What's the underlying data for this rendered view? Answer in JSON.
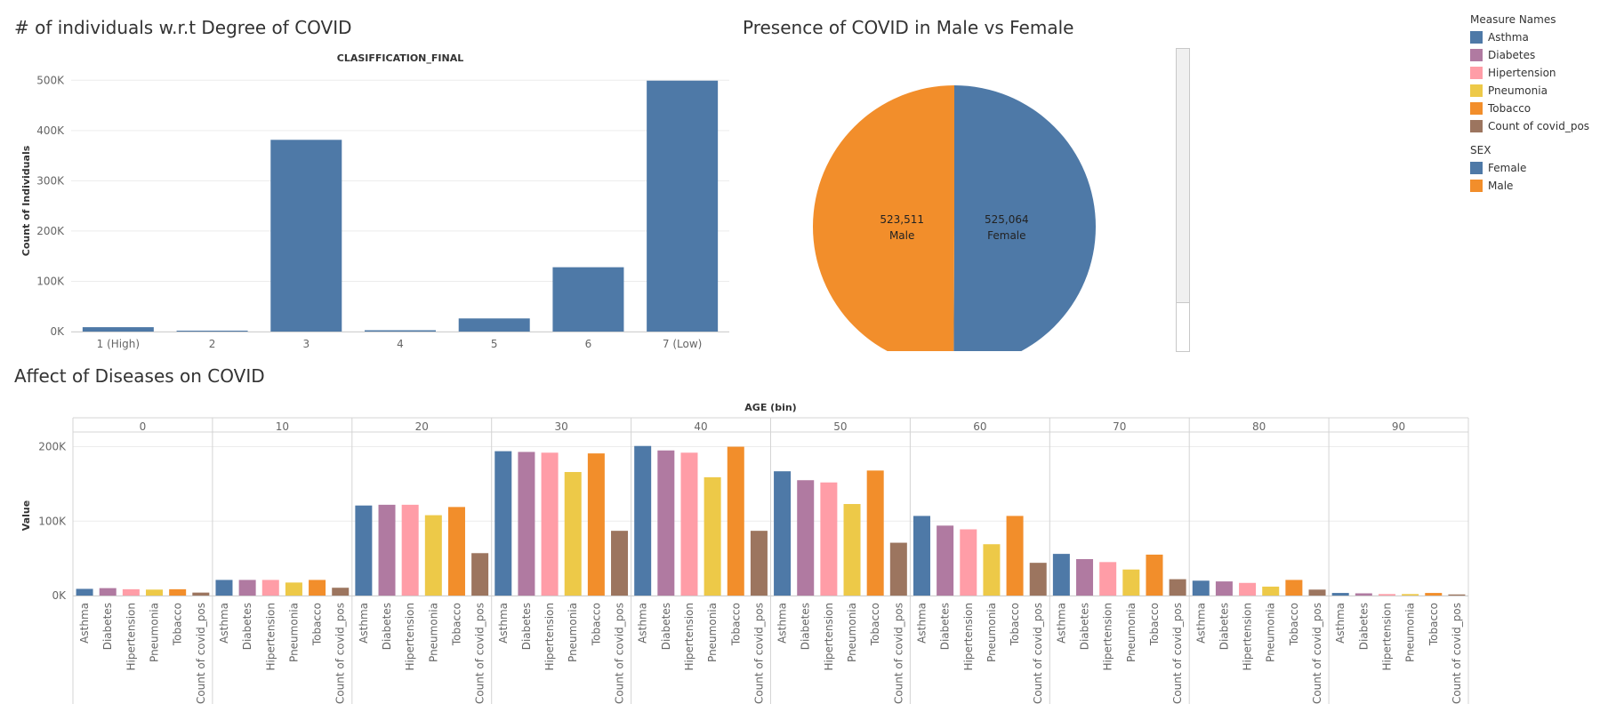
{
  "dashboard": {
    "bar_title": "# of individuals w.r.t Degree of COVID",
    "pie_title": "Presence of COVID in Male vs Female",
    "grouped_title": "Affect of Diseases on COVID"
  },
  "legend": {
    "measure_title": "Measure Names",
    "measures": [
      {
        "label": "Asthma",
        "color": "#4e79a7"
      },
      {
        "label": "Diabetes",
        "color": "#b07aa1"
      },
      {
        "label": "Hipertension",
        "color": "#ff9da7"
      },
      {
        "label": "Pneumonia",
        "color": "#edc948"
      },
      {
        "label": "Tobacco",
        "color": "#f28e2b"
      },
      {
        "label": "Count of covid_pos",
        "color": "#9c755f"
      }
    ],
    "sex_title": "SEX",
    "sexes": [
      {
        "label": "Female",
        "color": "#4e79a7"
      },
      {
        "label": "Male",
        "color": "#f28e2b"
      }
    ]
  },
  "chart_data": [
    {
      "type": "bar",
      "title": "# of individuals w.r.t Degree of COVID",
      "header": "CLASIFFICATION_FINAL",
      "ylabel": "Count of Individuals",
      "xlabel": "",
      "categories": [
        "1 (High)",
        "2",
        "3",
        "4",
        "5",
        "6",
        "7 (Low)"
      ],
      "values": [
        8700,
        1800,
        381500,
        2600,
        26100,
        128000,
        499250
      ],
      "ylim": [
        0,
        520000
      ],
      "yticks": [
        0,
        100000,
        200000,
        300000,
        400000,
        500000
      ],
      "ytick_labels": [
        "0K",
        "100K",
        "200K",
        "300K",
        "400K",
        "500K"
      ],
      "color": "#4e79a7",
      "grid": true
    },
    {
      "type": "pie",
      "title": "Presence of COVID in Male vs Female",
      "slices": [
        {
          "label": "Female",
          "value": 525064,
          "value_label": "525,064",
          "color": "#4e79a7"
        },
        {
          "label": "Male",
          "value": 523511,
          "value_label": "523,511",
          "color": "#f28e2b"
        }
      ]
    },
    {
      "type": "bar",
      "title": "Affect of Diseases on COVID",
      "header": "AGE (bin)",
      "ylabel": "Value",
      "groups": [
        "0",
        "10",
        "20",
        "30",
        "40",
        "50",
        "60",
        "70",
        "80",
        "90"
      ],
      "measures": [
        "Asthma",
        "Diabetes",
        "Hipertension",
        "Pneumonia",
        "Tobacco",
        "Count of covid_pos"
      ],
      "colors": [
        "#4e79a7",
        "#b07aa1",
        "#ff9da7",
        "#edc948",
        "#f28e2b",
        "#9c755f"
      ],
      "series": [
        {
          "name": "0",
          "values": [
            9000,
            10000,
            8500,
            8000,
            8500,
            4000
          ]
        },
        {
          "name": "10",
          "values": [
            21000,
            21000,
            21000,
            17500,
            21000,
            10500
          ]
        },
        {
          "name": "20",
          "values": [
            121000,
            122000,
            122000,
            108000,
            119000,
            57000
          ]
        },
        {
          "name": "30",
          "values": [
            194000,
            193000,
            192000,
            166000,
            191000,
            87000
          ]
        },
        {
          "name": "40",
          "values": [
            201000,
            195000,
            192000,
            159000,
            200000,
            87000
          ]
        },
        {
          "name": "50",
          "values": [
            167000,
            155000,
            152000,
            123000,
            168000,
            71000
          ]
        },
        {
          "name": "60",
          "values": [
            107000,
            94000,
            89000,
            69000,
            107000,
            44000
          ]
        },
        {
          "name": "70",
          "values": [
            56000,
            49000,
            45000,
            35000,
            55000,
            22000
          ]
        },
        {
          "name": "80",
          "values": [
            20000,
            19000,
            17000,
            12000,
            21000,
            8000
          ]
        },
        {
          "name": "90",
          "values": [
            3500,
            3000,
            2000,
            2000,
            3500,
            1500
          ]
        }
      ],
      "ylim": [
        0,
        215000
      ],
      "yticks": [
        0,
        100000,
        200000
      ],
      "ytick_labels": [
        "0K",
        "100K",
        "200K"
      ],
      "grid": true
    }
  ]
}
